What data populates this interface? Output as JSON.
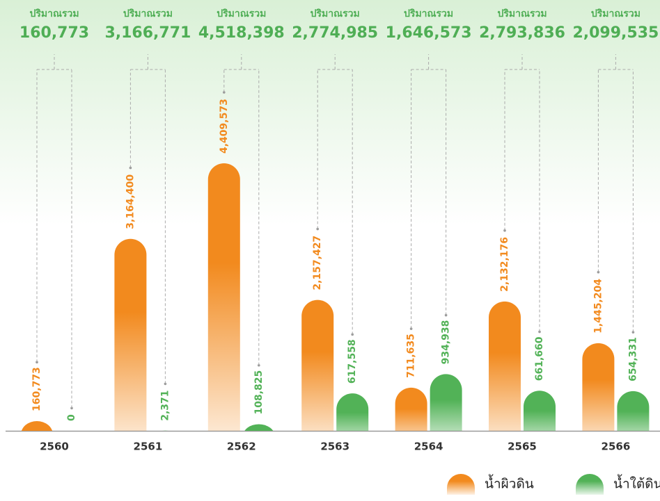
{
  "chart_data": {
    "type": "bar",
    "categories": [
      "2560",
      "2561",
      "2562",
      "2563",
      "2564",
      "2565",
      "2566"
    ],
    "totals": {
      "title": "ปริมาณรวม",
      "labels": [
        "160,773",
        "3,166,771",
        "4,518,398",
        "2,774,985",
        "1,646,573",
        "2,793,836",
        "2,099,535"
      ]
    },
    "series": [
      {
        "name": "น้ำผิวดิน",
        "color": "#f28a1e",
        "values": [
          160773,
          3164400,
          4409573,
          2157427,
          711635,
          2132176,
          1445204
        ],
        "value_labels": [
          "160,773",
          "3,164,400",
          "4,409,573",
          "2,157,427",
          "711,635",
          "2,132,176",
          "1,445,204"
        ]
      },
      {
        "name": "น้ำใต้ดิน",
        "color": "#52b257",
        "values": [
          0,
          2371,
          108825,
          617558,
          934938,
          661660,
          654331
        ],
        "value_labels": [
          "0",
          "2,371",
          "108,825",
          "617,558",
          "934,938",
          "661,660",
          "654,331"
        ]
      }
    ],
    "legend": "bottom-right"
  }
}
